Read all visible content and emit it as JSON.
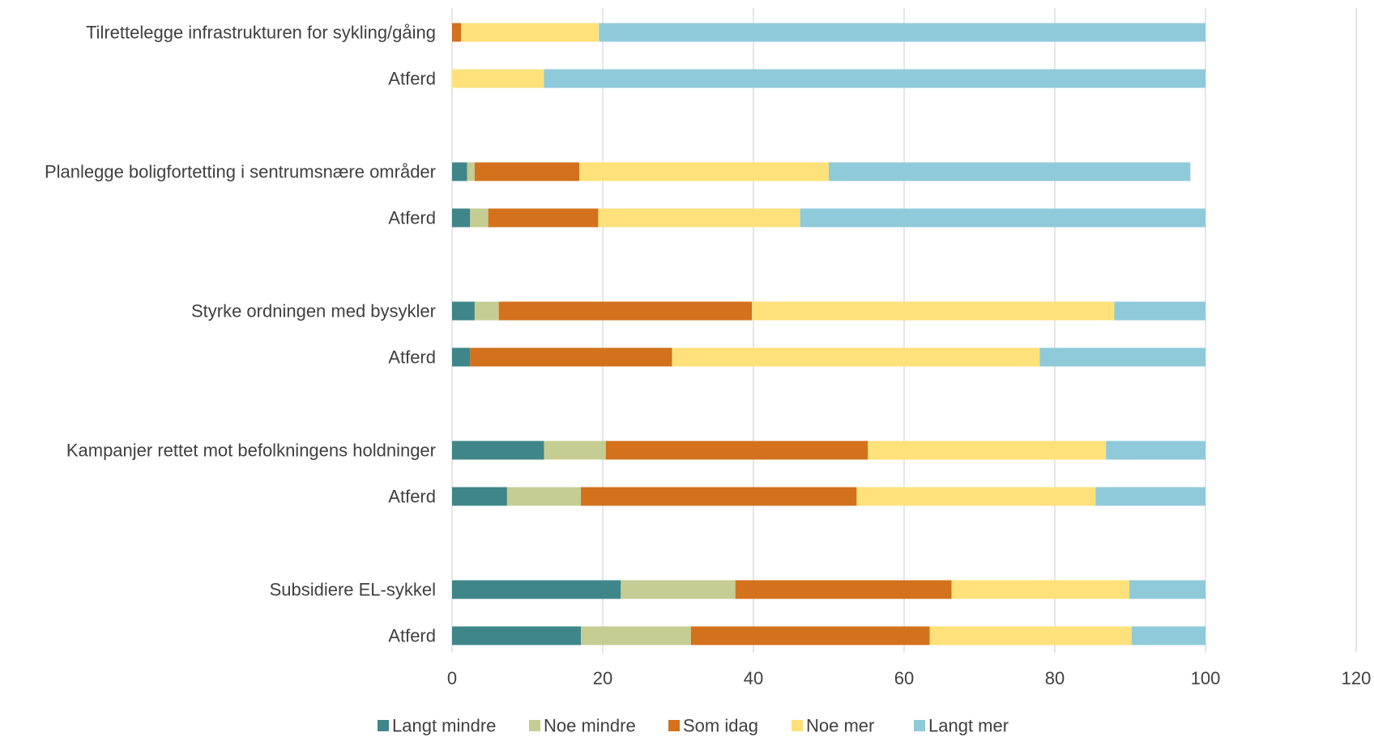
{
  "chart_data": {
    "type": "bar",
    "orientation": "horizontal",
    "stacked": true,
    "categories": [
      "Tilrettelegge infrastrukturen for sykling/gåing",
      "Atferd",
      "Planlegge boligfortetting i sentrumsnære områder",
      "Atferd",
      "Styrke ordningen med bysykler",
      "Atferd",
      "Kampanjer rettet mot befolkningens holdninger",
      "Atferd",
      "Subsidiere EL-sykkel",
      "Atferd"
    ],
    "series": [
      {
        "name": "Langt mindre",
        "color": "#3f868a",
        "values": [
          0,
          0,
          2,
          2.4,
          3,
          2.4,
          12.2,
          7.3,
          22.4,
          17.1
        ]
      },
      {
        "name": "Noe mindre",
        "color": "#c5cd93",
        "values": [
          0,
          0,
          1,
          2.4,
          3.2,
          0,
          8.2,
          9.8,
          15.2,
          14.6
        ]
      },
      {
        "name": "Som idag",
        "color": "#d3711d",
        "values": [
          1.2,
          0,
          13.9,
          14.6,
          33.6,
          26.8,
          34.8,
          36.6,
          28.7,
          31.7
        ]
      },
      {
        "name": "Noe mer",
        "color": "#fee17a",
        "values": [
          18.3,
          12.2,
          33.1,
          26.8,
          48.1,
          48.8,
          31.6,
          31.7,
          23.6,
          26.8
        ]
      },
      {
        "name": "Langt mer",
        "color": "#8fcada",
        "values": [
          80.5,
          87.8,
          48,
          53.8,
          12.1,
          22,
          13.2,
          14.6,
          10.1,
          9.8
        ]
      }
    ],
    "xlim": [
      0,
      120
    ],
    "x_ticks": [
      0,
      20,
      40,
      60,
      80,
      100,
      120
    ],
    "grid": true,
    "legend_position": "bottom"
  }
}
